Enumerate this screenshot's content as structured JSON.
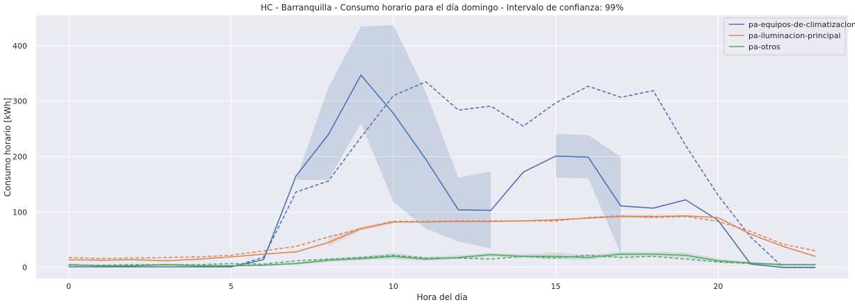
{
  "chart_data": {
    "type": "line",
    "title": "HC - Barranquilla - Consumo horario para el día domingo - Intervalo de confianza: 99%",
    "xlabel": "Hora del día",
    "ylabel": "Consumo horario [kWh]",
    "xlim": [
      -1,
      24
    ],
    "ylim": [
      -20,
      455
    ],
    "xticks": [
      0,
      5,
      10,
      15,
      20
    ],
    "yticks": [
      0,
      100,
      200,
      300,
      400
    ],
    "grid": true,
    "legend_position": "top-right",
    "series": [
      {
        "name": "pa-equipos-de-climatizacion",
        "color": "#4c72b0",
        "x": [
          0,
          1,
          2,
          3,
          4,
          5,
          6,
          7,
          8,
          9,
          10,
          11,
          12,
          13,
          14,
          15,
          16,
          17,
          18,
          19,
          20,
          21,
          22,
          23
        ],
        "values": [
          1,
          1,
          1,
          1,
          1,
          1,
          14,
          165,
          240,
          347,
          278,
          195,
          104,
          103,
          172,
          201,
          199,
          111,
          107,
          122,
          85,
          6,
          0,
          0
        ],
        "ci_lower": [
          null,
          null,
          null,
          null,
          null,
          null,
          null,
          158,
          158,
          260,
          118,
          70,
          47,
          34,
          null,
          162,
          161,
          25,
          null,
          null,
          null,
          null,
          null,
          null
        ],
        "ci_upper": [
          null,
          null,
          null,
          null,
          null,
          null,
          null,
          158,
          325,
          435,
          437,
          316,
          162,
          173,
          null,
          241,
          239,
          200,
          null,
          null,
          null,
          null,
          null,
          null
        ],
        "reference": [
          1,
          1,
          1,
          1,
          1,
          1,
          18,
          136,
          156,
          235,
          310,
          335,
          284,
          291,
          255,
          297,
          327,
          307,
          319,
          220,
          130,
          55,
          0,
          0
        ]
      },
      {
        "name": "pa-iluminacion-principal",
        "color": "#dd8452",
        "x": [
          0,
          1,
          2,
          3,
          4,
          5,
          6,
          7,
          8,
          9,
          10,
          11,
          12,
          13,
          14,
          15,
          16,
          17,
          18,
          19,
          20,
          21,
          22,
          23
        ],
        "values": [
          14,
          13,
          14,
          12,
          15,
          19,
          24,
          28,
          45,
          70,
          82,
          82,
          83,
          83,
          84,
          86,
          89,
          92,
          92,
          93,
          90,
          60,
          38,
          20
        ],
        "ci_lower": [
          null,
          null,
          null,
          null,
          null,
          null,
          null,
          null,
          38,
          67,
          79,
          null,
          null,
          null,
          null,
          null,
          null,
          89,
          89,
          null,
          null,
          null,
          26,
          null
        ],
        "ci_upper": [
          null,
          null,
          null,
          null,
          null,
          null,
          null,
          null,
          52,
          73,
          85,
          null,
          null,
          null,
          null,
          null,
          null,
          95,
          95,
          null,
          null,
          null,
          50,
          null
        ],
        "reference": [
          18,
          16,
          17,
          18,
          19,
          22,
          30,
          38,
          55,
          70,
          83,
          83,
          84,
          84,
          84,
          84,
          90,
          93,
          90,
          92,
          83,
          65,
          42,
          30
        ]
      },
      {
        "name": "pa-otros",
        "color": "#55a868",
        "x": [
          0,
          1,
          2,
          3,
          4,
          5,
          6,
          7,
          8,
          9,
          10,
          11,
          12,
          13,
          14,
          15,
          16,
          17,
          18,
          19,
          20,
          21,
          22,
          23
        ],
        "values": [
          5,
          3,
          3,
          5,
          3,
          3,
          4,
          7,
          13,
          16,
          20,
          15,
          18,
          23,
          20,
          20,
          18,
          24,
          24,
          22,
          12,
          8,
          5,
          5
        ],
        "ci_lower": [
          3,
          2,
          2,
          3,
          2,
          2,
          3,
          5,
          10,
          13,
          15,
          12,
          15,
          19,
          17,
          15,
          14,
          20,
          20,
          17,
          8,
          6,
          3,
          3
        ],
        "ci_upper": [
          7,
          5,
          5,
          7,
          5,
          5,
          6,
          9,
          16,
          20,
          26,
          19,
          22,
          26,
          24,
          27,
          23,
          28,
          28,
          27,
          16,
          10,
          7,
          7
        ],
        "reference": [
          4,
          4,
          5,
          5,
          5,
          7,
          6,
          12,
          15,
          18,
          22,
          17,
          17,
          15,
          20,
          17,
          22,
          18,
          20,
          15,
          10,
          7,
          5,
          5
        ]
      }
    ]
  }
}
